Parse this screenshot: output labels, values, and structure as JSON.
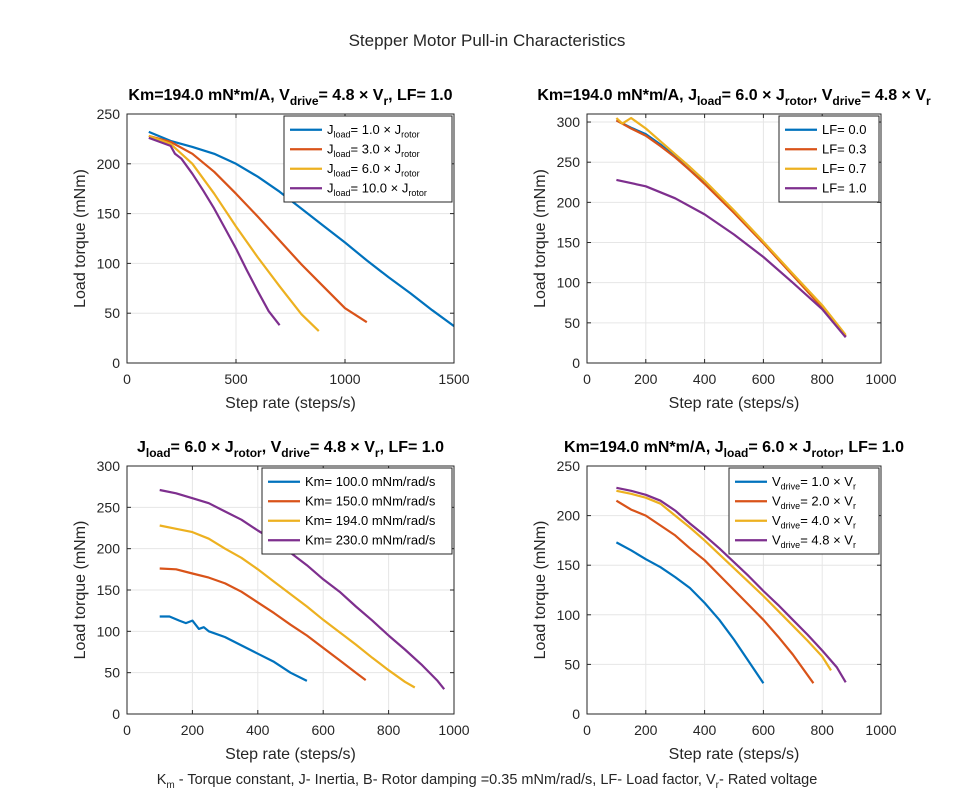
{
  "figure": {
    "suptitle": "Stepper Motor Pull-in Characteristics",
    "footer_parts": [
      "K",
      "m",
      " - Torque constant, J- Inertia, B- Rotor damping =0.35 mNm/rad/s, LF- Load factor, V",
      "r",
      "- Rated voltage"
    ]
  },
  "colors": {
    "blue": "#0072BD",
    "orange": "#D95319",
    "yellow": "#EDB120",
    "purple": "#7E2F8E",
    "axis": "#262626",
    "grid": "#e6e6e6"
  },
  "chart_data": [
    {
      "type": "line",
      "title_parts": [
        [
          "Km=194.0 mN*m/A, V",
          ""
        ],
        [
          "drive",
          "sub"
        ],
        [
          "= 4.8 × V",
          ""
        ],
        [
          "r",
          "sub"
        ],
        [
          ", LF= 1.0",
          ""
        ]
      ],
      "xlabel": "Step rate (steps/s)",
      "ylabel": "Load torque (mNm)",
      "xlim": [
        0,
        1500
      ],
      "ylim": [
        0,
        250
      ],
      "xticks": [
        0,
        500,
        1000,
        1500
      ],
      "yticks": [
        0,
        50,
        100,
        150,
        200,
        250
      ],
      "grid": true,
      "legend_position": "top-right",
      "series": [
        {
          "legend_parts": [
            [
              "J",
              ""
            ],
            [
              "load",
              "sub"
            ],
            [
              "= 1.0 × J",
              ""
            ],
            [
              "rotor",
              "sub"
            ]
          ],
          "color": "#0072BD",
          "x": [
            100,
            200,
            300,
            400,
            500,
            600,
            700,
            800,
            900,
            1000,
            1100,
            1200,
            1300,
            1400,
            1500
          ],
          "y": [
            232,
            223,
            217,
            210,
            200,
            187,
            172,
            155,
            138,
            121,
            103,
            86,
            70,
            53,
            37
          ]
        },
        {
          "legend_parts": [
            [
              "J",
              ""
            ],
            [
              "load",
              "sub"
            ],
            [
              "= 3.0 × J",
              ""
            ],
            [
              "rotor",
              "sub"
            ]
          ],
          "color": "#D95319",
          "x": [
            100,
            200,
            300,
            400,
            500,
            600,
            700,
            800,
            900,
            1000,
            1100
          ],
          "y": [
            228,
            222,
            210,
            192,
            170,
            147,
            123,
            99,
            77,
            55,
            41
          ]
        },
        {
          "legend_parts": [
            [
              "J",
              ""
            ],
            [
              "load",
              "sub"
            ],
            [
              "= 6.0 × J",
              ""
            ],
            [
              "rotor",
              "sub"
            ]
          ],
          "color": "#EDB120",
          "x": [
            100,
            200,
            300,
            400,
            500,
            600,
            700,
            800,
            880
          ],
          "y": [
            228,
            220,
            200,
            170,
            137,
            106,
            77,
            49,
            32
          ]
        },
        {
          "legend_parts": [
            [
              "J",
              ""
            ],
            [
              "load",
              "sub"
            ],
            [
              "= 10.0 × J",
              ""
            ],
            [
              "rotor",
              "sub"
            ]
          ],
          "color": "#7E2F8E",
          "x": [
            100,
            150,
            200,
            220,
            250,
            300,
            350,
            400,
            450,
            500,
            550,
            600,
            650,
            700
          ],
          "y": [
            226,
            222,
            218,
            210,
            205,
            190,
            173,
            155,
            135,
            115,
            93,
            72,
            52,
            38
          ]
        }
      ]
    },
    {
      "type": "line",
      "title_parts": [
        [
          "Km=194.0 mN*m/A, J",
          ""
        ],
        [
          "load",
          "sub"
        ],
        [
          "= 6.0 × J",
          ""
        ],
        [
          "rotor",
          "sub"
        ],
        [
          ", V",
          ""
        ],
        [
          "drive",
          "sub"
        ],
        [
          "= 4.8 × V",
          ""
        ],
        [
          "r",
          "sub"
        ]
      ],
      "xlabel": "Step rate (steps/s)",
      "ylabel": "Load torque (mNm)",
      "xlim": [
        0,
        1000
      ],
      "ylim": [
        0,
        310
      ],
      "xticks": [
        0,
        200,
        400,
        600,
        800,
        1000
      ],
      "yticks": [
        0,
        50,
        100,
        150,
        200,
        250,
        300
      ],
      "grid": true,
      "legend_position": "top-right",
      "series": [
        {
          "legend_parts": [
            [
              "LF= 0.0",
              ""
            ]
          ],
          "color": "#0072BD",
          "x": [
            100,
            150,
            200,
            250,
            300,
            350,
            400,
            500,
            600,
            700,
            800,
            880
          ],
          "y": [
            302,
            293,
            285,
            272,
            257,
            240,
            224,
            188,
            150,
            110,
            70,
            33
          ]
        },
        {
          "legend_parts": [
            [
              "LF= 0.3",
              ""
            ]
          ],
          "color": "#D95319",
          "x": [
            100,
            150,
            200,
            250,
            300,
            350,
            400,
            500,
            600,
            700,
            800,
            880
          ],
          "y": [
            302,
            292,
            283,
            270,
            256,
            240,
            223,
            187,
            149,
            109,
            69,
            33
          ]
        },
        {
          "legend_parts": [
            [
              "LF= 0.7",
              ""
            ]
          ],
          "color": "#EDB120",
          "x": [
            100,
            120,
            150,
            200,
            250,
            300,
            350,
            400,
            500,
            600,
            700,
            800,
            880
          ],
          "y": [
            305,
            298,
            305,
            292,
            276,
            260,
            244,
            227,
            190,
            151,
            111,
            72,
            35
          ]
        },
        {
          "legend_parts": [
            [
              "LF= 1.0",
              ""
            ]
          ],
          "color": "#7E2F8E",
          "x": [
            100,
            200,
            300,
            400,
            500,
            600,
            700,
            800,
            880
          ],
          "y": [
            228,
            220,
            205,
            185,
            160,
            132,
            100,
            67,
            32
          ]
        }
      ]
    },
    {
      "type": "line",
      "title_parts": [
        [
          "J",
          ""
        ],
        [
          "load",
          "sub"
        ],
        [
          "= 6.0 × J",
          ""
        ],
        [
          "rotor",
          "sub"
        ],
        [
          ", V",
          ""
        ],
        [
          "drive",
          "sub"
        ],
        [
          "= 4.8 × V",
          ""
        ],
        [
          "r",
          "sub"
        ],
        [
          ", LF= 1.0",
          ""
        ]
      ],
      "xlabel": "Step rate (steps/s)",
      "ylabel": "Load torque (mNm)",
      "xlim": [
        0,
        1000
      ],
      "ylim": [
        0,
        300
      ],
      "xticks": [
        0,
        200,
        400,
        600,
        800,
        1000
      ],
      "yticks": [
        0,
        50,
        100,
        150,
        200,
        250,
        300
      ],
      "grid": true,
      "legend_position": "top-right",
      "series": [
        {
          "legend_parts": [
            [
              "Km= 100.0 mNm/rad/s",
              ""
            ]
          ],
          "color": "#0072BD",
          "x": [
            100,
            130,
            160,
            180,
            200,
            220,
            235,
            250,
            300,
            350,
            400,
            450,
            500,
            550
          ],
          "y": [
            118,
            118,
            113,
            110,
            113,
            103,
            105,
            100,
            93,
            83,
            73,
            63,
            50,
            40
          ]
        },
        {
          "legend_parts": [
            [
              "Km= 150.0 mNm/rad/s",
              ""
            ]
          ],
          "color": "#D95319",
          "x": [
            100,
            150,
            200,
            250,
            300,
            350,
            400,
            450,
            500,
            550,
            600,
            650,
            700,
            730
          ],
          "y": [
            176,
            175,
            170,
            165,
            158,
            148,
            135,
            122,
            108,
            95,
            80,
            65,
            50,
            41
          ]
        },
        {
          "legend_parts": [
            [
              "Km= 194.0 mNm/rad/s",
              ""
            ]
          ],
          "color": "#EDB120",
          "x": [
            100,
            150,
            200,
            250,
            300,
            350,
            400,
            450,
            500,
            550,
            600,
            650,
            700,
            750,
            800,
            850,
            880
          ],
          "y": [
            228,
            224,
            220,
            212,
            200,
            189,
            175,
            160,
            145,
            130,
            114,
            99,
            84,
            68,
            53,
            39,
            32
          ]
        },
        {
          "legend_parts": [
            [
              "Km= 230.0 mNm/rad/s",
              ""
            ]
          ],
          "color": "#7E2F8E",
          "x": [
            100,
            150,
            200,
            250,
            300,
            350,
            400,
            450,
            500,
            550,
            600,
            650,
            700,
            750,
            800,
            850,
            900,
            950,
            970
          ],
          "y": [
            271,
            267,
            261,
            255,
            245,
            235,
            222,
            210,
            195,
            180,
            163,
            148,
            130,
            113,
            95,
            78,
            60,
            40,
            30
          ]
        }
      ]
    },
    {
      "type": "line",
      "title_parts": [
        [
          "Km=194.0 mN*m/A, J",
          ""
        ],
        [
          "load",
          "sub"
        ],
        [
          "= 6.0 × J",
          ""
        ],
        [
          "rotor",
          "sub"
        ],
        [
          ", LF= 1.0",
          ""
        ]
      ],
      "xlabel": "Step rate (steps/s)",
      "ylabel": "Load torque (mNm)",
      "xlim": [
        0,
        1000
      ],
      "ylim": [
        0,
        250
      ],
      "xticks": [
        0,
        200,
        400,
        600,
        800,
        1000
      ],
      "yticks": [
        0,
        50,
        100,
        150,
        200,
        250
      ],
      "grid": true,
      "legend_position": "top-right",
      "series": [
        {
          "legend_parts": [
            [
              "V",
              ""
            ],
            [
              "drive",
              "sub"
            ],
            [
              "= 1.0 × V",
              ""
            ],
            [
              "r",
              "sub"
            ]
          ],
          "color": "#0072BD",
          "x": [
            100,
            150,
            200,
            250,
            300,
            350,
            400,
            450,
            500,
            550,
            600
          ],
          "y": [
            173,
            165,
            156,
            148,
            138,
            127,
            112,
            95,
            75,
            53,
            31
          ]
        },
        {
          "legend_parts": [
            [
              "V",
              ""
            ],
            [
              "drive",
              "sub"
            ],
            [
              "= 2.0 × V",
              ""
            ],
            [
              "r",
              "sub"
            ]
          ],
          "color": "#D95319",
          "x": [
            100,
            150,
            200,
            250,
            300,
            350,
            400,
            450,
            500,
            550,
            600,
            650,
            700,
            770
          ],
          "y": [
            215,
            206,
            200,
            190,
            180,
            167,
            155,
            140,
            125,
            110,
            95,
            78,
            60,
            31
          ]
        },
        {
          "legend_parts": [
            [
              "V",
              ""
            ],
            [
              "drive",
              "sub"
            ],
            [
              "= 4.0 × V",
              ""
            ],
            [
              "r",
              "sub"
            ]
          ],
          "color": "#EDB120",
          "x": [
            100,
            150,
            200,
            250,
            300,
            350,
            400,
            450,
            500,
            550,
            600,
            650,
            700,
            750,
            800,
            830
          ],
          "y": [
            225,
            222,
            218,
            212,
            200,
            188,
            175,
            161,
            147,
            133,
            119,
            104,
            89,
            74,
            58,
            44
          ]
        },
        {
          "legend_parts": [
            [
              "V",
              ""
            ],
            [
              "drive",
              "sub"
            ],
            [
              "= 4.8 × V",
              ""
            ],
            [
              "r",
              "sub"
            ]
          ],
          "color": "#7E2F8E",
          "x": [
            100,
            150,
            200,
            250,
            300,
            350,
            400,
            450,
            500,
            550,
            600,
            650,
            700,
            750,
            800,
            850,
            880
          ],
          "y": [
            228,
            225,
            221,
            215,
            205,
            192,
            180,
            167,
            153,
            139,
            124,
            110,
            95,
            80,
            64,
            47,
            32
          ]
        }
      ]
    }
  ]
}
